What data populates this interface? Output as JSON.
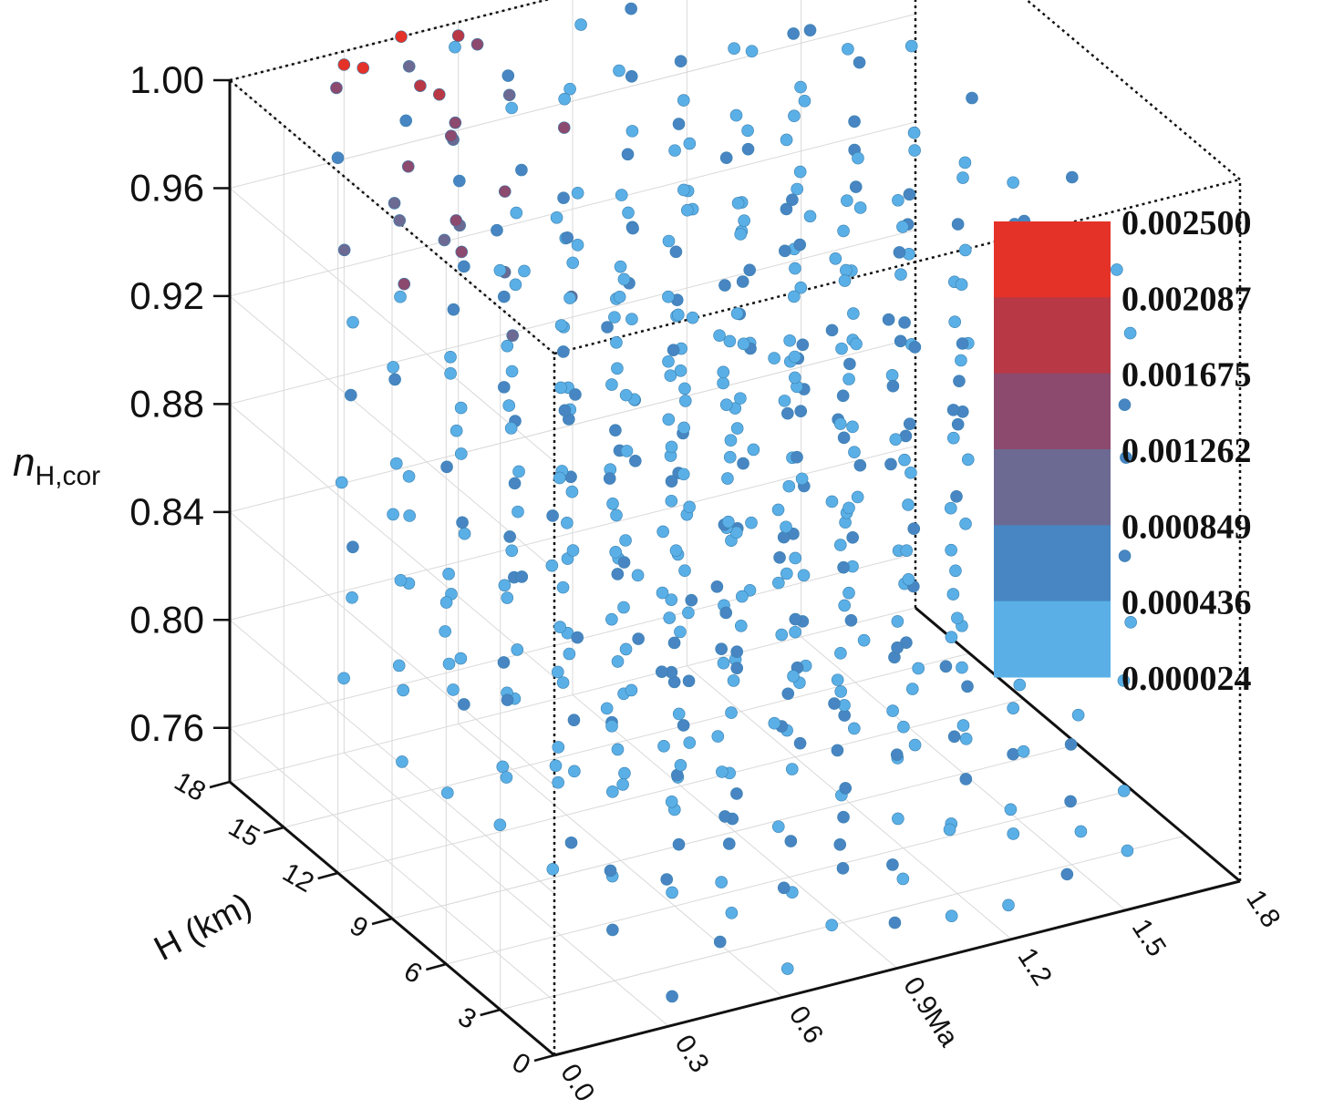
{
  "chart_data": {
    "type": "scatter",
    "projection": "3d",
    "title": "",
    "axes": {
      "mach": {
        "label": "Ma",
        "range": [
          0.0,
          1.8
        ],
        "ticks": [
          "0.0",
          "0.3",
          "0.6",
          "0.9",
          "1.2",
          "1.5",
          "1.8"
        ]
      },
      "height": {
        "label": "H (km)",
        "range": [
          0,
          18
        ],
        "ticks": [
          "0",
          "3",
          "6",
          "9",
          "12",
          "15",
          "18"
        ]
      },
      "n": {
        "label_main": "n",
        "label_sub": "H,cor",
        "range": [
          0.74,
          1.0
        ],
        "ticks": [
          "0.76",
          "0.80",
          "0.84",
          "0.88",
          "0.92",
          "0.96",
          "1.00"
        ]
      }
    },
    "colorbar": {
      "labels": [
        "0.002500",
        "0.002087",
        "0.001675",
        "0.001262",
        "0.000849",
        "0.000436",
        "0.000024"
      ],
      "colors": [
        "#e53228",
        "#b83845",
        "#8b4a6e",
        "#6c6a92",
        "#4786c2",
        "#5ab0e6"
      ],
      "placement": "right"
    },
    "grid": true,
    "point_color_default": "#53afe0",
    "points_description_values": {
      "mach_levels": [
        0.3,
        0.45,
        0.6,
        0.75,
        0.9,
        1.05,
        1.2,
        1.35,
        1.5
      ],
      "height_levels": [
        0,
        3,
        6,
        9,
        12,
        15,
        18
      ],
      "high_error_points": [
        {
          "mach": 0.3,
          "height": 18,
          "n": 0.995,
          "error": 0.0023
        },
        {
          "mach": 0.35,
          "height": 18,
          "n": 0.992,
          "error": 0.0022
        },
        {
          "mach": 0.45,
          "height": 18,
          "n": 1.0,
          "error": 0.0021
        },
        {
          "mach": 0.5,
          "height": 18,
          "n": 0.98,
          "error": 0.0019
        },
        {
          "mach": 0.55,
          "height": 18,
          "n": 0.975,
          "error": 0.0018
        },
        {
          "mach": 0.6,
          "height": 18,
          "n": 0.995,
          "error": 0.0017
        },
        {
          "mach": 0.65,
          "height": 18,
          "n": 0.99,
          "error": 0.0016
        },
        {
          "mach": 0.45,
          "height": 15,
          "n": 0.985,
          "error": 0.0015
        }
      ]
    }
  }
}
